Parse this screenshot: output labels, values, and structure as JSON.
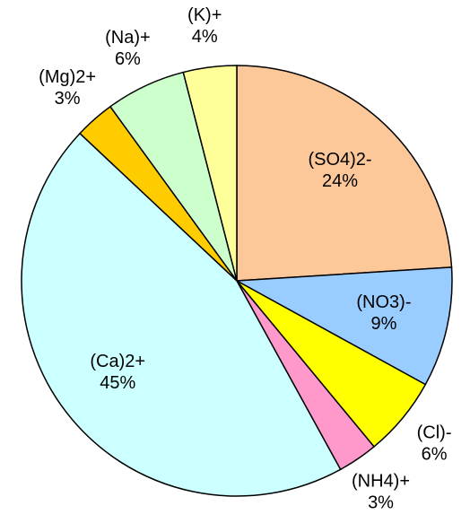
{
  "chart_data": {
    "type": "pie",
    "categories": [
      "(SO4)2-",
      "(NO3)-",
      "(Cl)-",
      "(NH4)+",
      "(Ca)2+",
      "(Mg)2+",
      "(Na)+",
      "(K)+"
    ],
    "values": [
      24,
      9,
      6,
      3,
      45,
      3,
      6,
      4
    ],
    "value_labels": [
      "24%",
      "9%",
      "6%",
      "3%",
      "45%",
      "3%",
      "6%",
      "4%"
    ],
    "colors": [
      "#fcc89a",
      "#99ccff",
      "#ffff00",
      "#ff99cc",
      "#ccffff",
      "#ffcc00",
      "#ccffcc",
      "#ffff99"
    ]
  }
}
